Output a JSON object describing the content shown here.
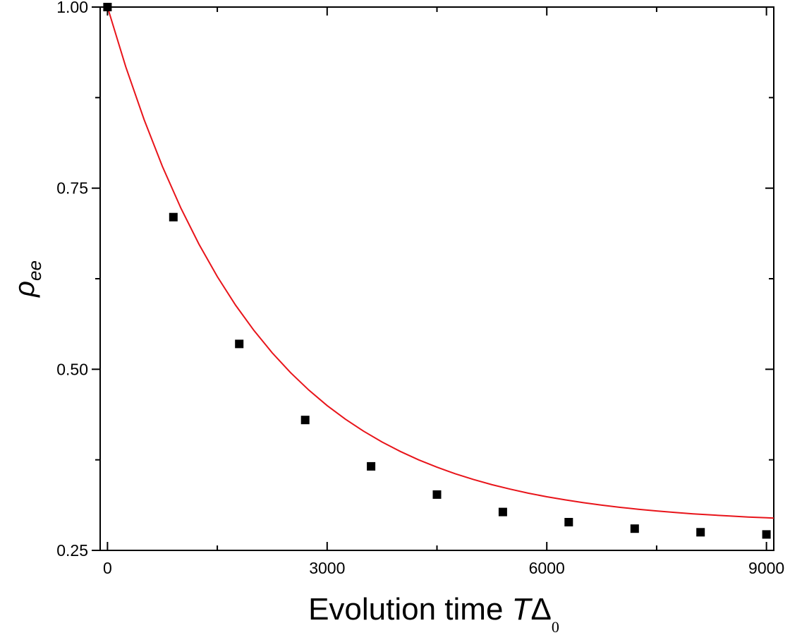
{
  "chart_data": {
    "type": "scatter",
    "xlabel": "Evolution time TΔ0",
    "xlabel_parts": {
      "text": "Evolution time ",
      "var": "T",
      "delta": "Δ",
      "sub": "0"
    },
    "ylabel": "ρee",
    "ylabel_parts": {
      "var": "ρ",
      "sub": "ee"
    },
    "xlim": [
      -100,
      9100
    ],
    "ylim": [
      0.25,
      1.0
    ],
    "x_ticks": [
      0,
      3000,
      6000,
      9000
    ],
    "x_tick_labels": [
      "0",
      "3000",
      "6000",
      "9000"
    ],
    "x_minor_ticks": [
      1500,
      4500,
      7500
    ],
    "y_ticks": [
      0.25,
      0.5,
      0.75,
      1.0
    ],
    "y_tick_labels": [
      "0.25",
      "0.50",
      "0.75",
      "1.00"
    ],
    "y_minor_ticks": [
      0.375,
      0.625,
      0.875
    ],
    "grid": false,
    "series": [
      {
        "kind": "scatter",
        "marker": "square",
        "color": "#000000",
        "x": [
          0,
          900,
          1800,
          2700,
          3600,
          4500,
          5400,
          6300,
          7200,
          8100,
          9000
        ],
        "y": [
          1.0,
          0.71,
          0.535,
          0.43,
          0.366,
          0.327,
          0.303,
          0.289,
          0.28,
          0.275,
          0.272
        ]
      },
      {
        "kind": "line",
        "color": "#e8141a",
        "function": "exponential decay fit",
        "x": [
          0,
          250,
          500,
          750,
          1000,
          1250,
          1500,
          1750,
          2000,
          2250,
          2500,
          2750,
          3000,
          3250,
          3500,
          3750,
          4000,
          4250,
          4500,
          4750,
          5000,
          5250,
          5500,
          5750,
          6000,
          6250,
          6500,
          6750,
          7000,
          7250,
          7500,
          7750,
          8000,
          8250,
          8500,
          8750,
          9000,
          9100
        ],
        "y": [
          1.0,
          0.9175,
          0.8446,
          0.7801,
          0.723,
          0.6726,
          0.6279,
          0.5885,
          0.5536,
          0.5227,
          0.4954,
          0.4713,
          0.4499,
          0.4311,
          0.4144,
          0.3996,
          0.3866,
          0.375,
          0.3648,
          0.3558,
          0.3478,
          0.3407,
          0.3345,
          0.3289,
          0.324,
          0.3197,
          0.3158,
          0.3124,
          0.3094,
          0.3068,
          0.3044,
          0.3023,
          0.3005,
          0.2989,
          0.2974,
          0.2961,
          0.295,
          0.2946
        ]
      }
    ]
  }
}
